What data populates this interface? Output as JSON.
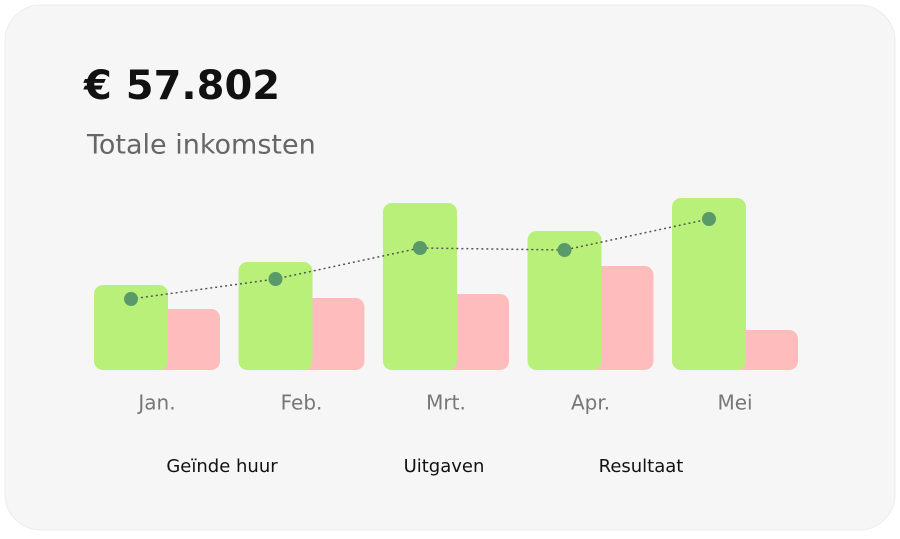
{
  "chart_data": {
    "type": "bar",
    "title": "€ 57.802",
    "subtitle": "Totale inkomsten",
    "categories": [
      "Jan.",
      "Feb.",
      "Mrt.",
      "Apr.",
      "Mei"
    ],
    "series": [
      {
        "name": "Geïnde huur",
        "color": "#b9f07a",
        "values": [
          85,
          108,
          167,
          139,
          172
        ]
      },
      {
        "name": "Uitgaven",
        "color": "#ffbcbc",
        "values": [
          61,
          72,
          76,
          104,
          40
        ]
      },
      {
        "name": "Resultaat",
        "color": "#5a9a6a",
        "type": "line",
        "values": [
          71,
          91,
          122,
          120,
          151
        ]
      }
    ]
  }
}
